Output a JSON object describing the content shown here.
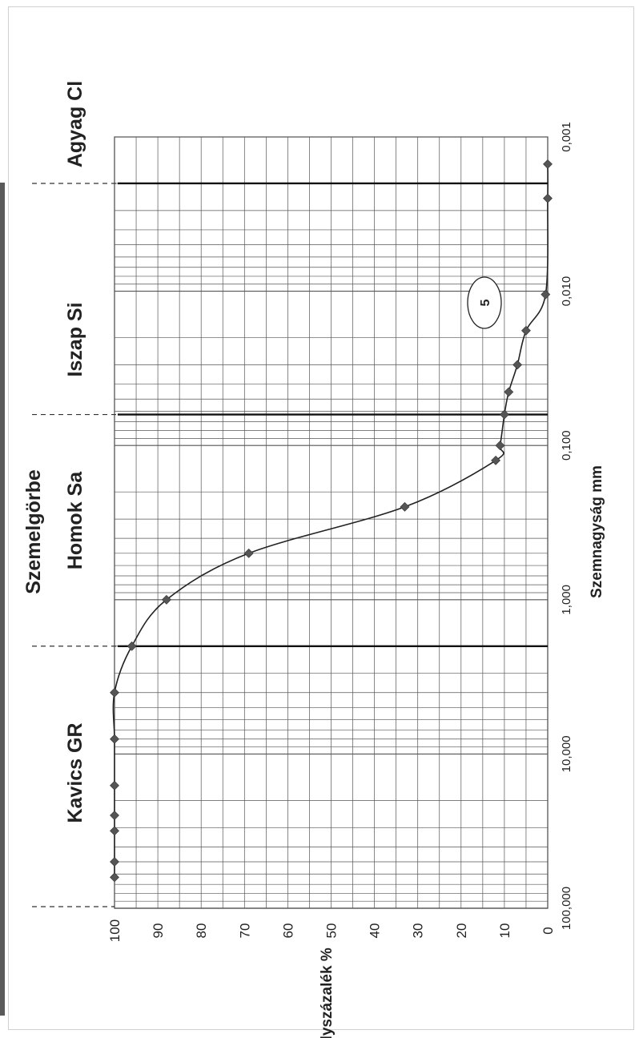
{
  "chart_data": {
    "type": "line",
    "title": "Szemelgörbe",
    "xlabel": "Szemnagyság mm",
    "ylabel": "Súlyszázalék %",
    "x_scale": "log",
    "x_reversed": true,
    "xlim": [
      0.001,
      100
    ],
    "ylim": [
      0,
      100
    ],
    "x_ticks": [
      {
        "value": 100,
        "label": "100,000"
      },
      {
        "value": 10,
        "label": "10,000"
      },
      {
        "value": 1,
        "label": "1,000"
      },
      {
        "value": 0.1,
        "label": "0,100"
      },
      {
        "value": 0.01,
        "label": "0,010"
      },
      {
        "value": 0.001,
        "label": "0,001"
      }
    ],
    "y_ticks": [
      0,
      10,
      20,
      30,
      40,
      50,
      60,
      70,
      80,
      90,
      100
    ],
    "grid": true,
    "regions": [
      {
        "label": "Kavics  GR",
        "from": 100,
        "to": 2
      },
      {
        "label": "Homok Sa",
        "from": 2,
        "to": 0.063
      },
      {
        "label": "Iszap Si",
        "from": 0.063,
        "to": 0.002
      },
      {
        "label": "Agyag Cl",
        "from": 0.002,
        "to": 0.001
      }
    ],
    "boundaries": [
      2,
      0.063,
      0.002
    ],
    "annotation": "5",
    "annotation_at": {
      "x": 0.0125,
      "y": 15
    },
    "series": [
      {
        "marker_color": "#555555",
        "x": [
          63,
          50,
          31.5,
          25,
          16,
          8,
          4,
          2,
          1,
          0.5,
          0.25,
          0.125,
          0.1,
          0.063,
          0.045,
          0.03,
          0.018,
          0.0105,
          0.0025,
          0.0015
        ],
        "y": [
          100,
          100,
          100,
          100,
          100,
          100,
          100,
          96,
          88,
          69,
          33,
          12,
          11,
          10,
          9,
          7,
          5,
          0.5,
          0,
          0
        ]
      }
    ]
  }
}
